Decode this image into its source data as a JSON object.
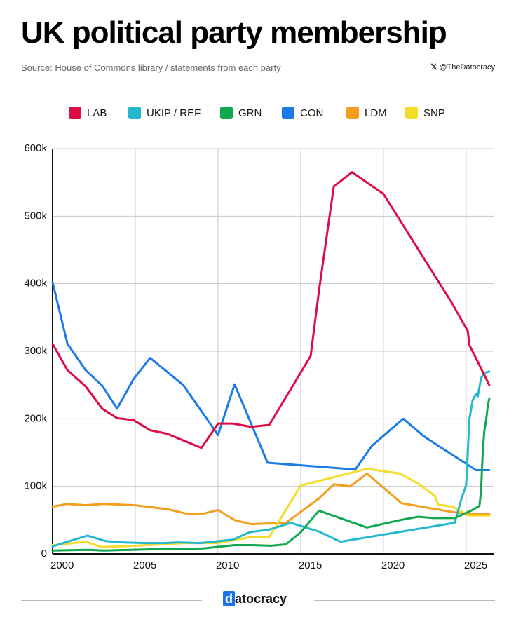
{
  "chart_data": {
    "type": "line",
    "title": "UK political party membership",
    "subtitle": "Source: House of Commons library / statements from each party",
    "credit": "@TheDatocracy",
    "logo": "datocracy",
    "legend": "top",
    "grid": true,
    "xlim": [
      2000,
      2026.7
    ],
    "xticks": [
      2000,
      2005,
      2010,
      2015,
      2020,
      2025
    ],
    "ylim": [
      0,
      600000
    ],
    "yticks": [
      0,
      {
        "value": 100000,
        "label": "100k"
      },
      {
        "value": 200000,
        "label": "200k"
      },
      {
        "value": 300000,
        "label": "300k"
      },
      {
        "value": 400000,
        "label": "400k"
      },
      {
        "value": 500000,
        "label": "500k"
      },
      {
        "value": 600000,
        "label": "600k"
      }
    ],
    "series": [
      {
        "name": "LAB",
        "color": "#dc0c45",
        "x": [
          2000,
          2000.9,
          2002,
          2003,
          2003.9,
          2004.9,
          2005.9,
          2006.9,
          2009,
          2010,
          2010.9,
          2012,
          2013.1,
          2015.6,
          2016.1,
          2017,
          2018.1,
          2020,
          2024.2,
          2024.4,
          2025.1,
          2025.2,
          2026.4
        ],
        "values": [
          311000,
          272000,
          248000,
          215000,
          201000,
          198000,
          183000,
          178000,
          157000,
          193000,
          193000,
          188000,
          191000,
          293000,
          389000,
          544000,
          565000,
          533000,
          369000,
          360000,
          330000,
          309000,
          250000
        ]
      },
      {
        "name": "UKIP / REF",
        "color": "#22b8cf",
        "x": [
          2000,
          2000.9,
          2002.1,
          2003.2,
          2004.2,
          2005.6,
          2006.7,
          2007.6,
          2008.9,
          2010.9,
          2011.9,
          2013.1,
          2014.4,
          2016.1,
          2017.4,
          2024.3,
          2024.7,
          2025,
          2025.2,
          2025.4,
          2025.6,
          2025.7,
          2025.9,
          2026.1,
          2026.4
        ],
        "values": [
          11000,
          18000,
          27000,
          19000,
          17000,
          16000,
          16000,
          17000,
          16000,
          21000,
          32000,
          36000,
          46000,
          33000,
          18000,
          46000,
          80000,
          102000,
          200000,
          228000,
          237000,
          233000,
          260000,
          268000,
          270000
        ]
      },
      {
        "name": "GRN",
        "color": "#0fa84f",
        "x": [
          2000,
          2002.1,
          2003.1,
          2006.4,
          2009.1,
          2011,
          2012.1,
          2013.2,
          2014.1,
          2015,
          2016.1,
          2019,
          2021,
          2022.1,
          2023,
          2024.3,
          2025.3,
          2025.8,
          2025.9,
          2026,
          2026.1,
          2026.2,
          2026.3,
          2026.4
        ],
        "values": [
          5000,
          6000,
          5000,
          7000,
          8000,
          13000,
          13000,
          12000,
          14000,
          32000,
          64000,
          39000,
          50000,
          55000,
          53000,
          53000,
          64000,
          71000,
          93000,
          150000,
          182000,
          197000,
          218000,
          230000
        ]
      },
      {
        "name": "CON",
        "color": "#1a7ae8",
        "x": [
          2000,
          2000.9,
          2002,
          2003,
          2003.9,
          2004.9,
          2005.9,
          2007.9,
          2010,
          2011,
          2013,
          2018.3,
          2019.3,
          2021.2,
          2022.5,
          2025.6,
          2026.4
        ],
        "values": [
          402000,
          311000,
          272000,
          249000,
          215000,
          259000,
          290000,
          250000,
          176000,
          251000,
          135000,
          125000,
          160000,
          200000,
          173000,
          124000,
          124000
        ]
      },
      {
        "name": "LDM",
        "color": "#f59d1e",
        "x": [
          2000,
          2000.9,
          2002,
          2003.1,
          2005,
          2007,
          2008,
          2009,
          2010,
          2011,
          2012,
          2013.1,
          2014.1,
          2016.1,
          2017,
          2018,
          2019,
          2021.1,
          2024.2,
          2025,
          2026.4
        ],
        "values": [
          70000,
          74000,
          72000,
          74000,
          72000,
          66000,
          60000,
          59000,
          65000,
          50000,
          44000,
          45000,
          46000,
          82000,
          103000,
          100000,
          119000,
          75000,
          62000,
          59000,
          59000
        ]
      },
      {
        "name": "SNP",
        "color": "#f5dc2a",
        "x": [
          2000,
          2000.9,
          2002,
          2003,
          2005,
          2008,
          2010,
          2012,
          2013.1,
          2015,
          2016.1,
          2019,
          2021,
          2022.1,
          2023.1,
          2023.3,
          2024.2,
          2025.1,
          2026.4
        ],
        "values": [
          13000,
          15000,
          18000,
          10000,
          12000,
          16000,
          16000,
          25000,
          25000,
          101000,
          108000,
          126000,
          119000,
          104000,
          86000,
          73000,
          70000,
          57000,
          57000
        ]
      }
    ]
  }
}
